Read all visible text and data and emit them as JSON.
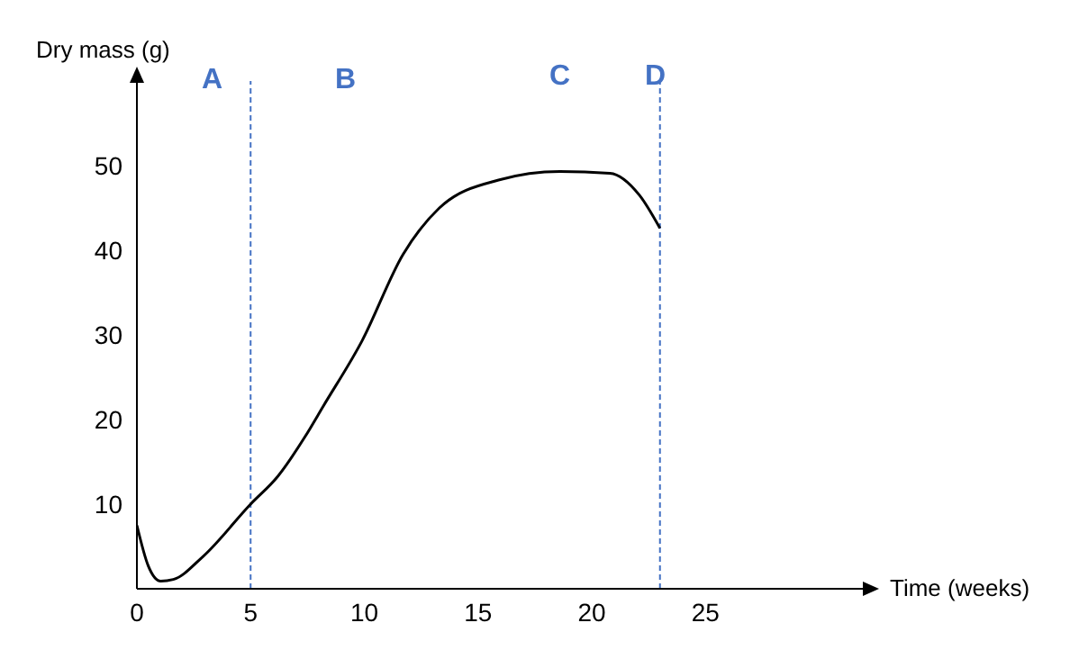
{
  "chart_data": {
    "type": "line",
    "xlabel": "Time (weeks)",
    "ylabel": "Dry mass (g)",
    "x": [
      0,
      0.5,
      1.05,
      1.6,
      2.9,
      5,
      6.2,
      7.4,
      8.2,
      9.9,
      11.7,
      13.3,
      15.9,
      18.6,
      20.8,
      22.1,
      23
    ],
    "series": [
      {
        "color": "#000000",
        "values": [
          7.5,
          2.7,
          0.9,
          1.1,
          3.8,
          10,
          13.3,
          18,
          21.6,
          29.3,
          39.5,
          45,
          48.3,
          49.3,
          49.1,
          46.5,
          42.6
        ]
      }
    ],
    "xlim": [
      0,
      32
    ],
    "xticks": [
      0,
      5,
      10,
      15,
      20,
      25
    ],
    "ylim": [
      0,
      60
    ],
    "yticks": [
      10,
      20,
      30,
      40,
      50
    ],
    "ref_lines": [
      {
        "axis": "x",
        "value": 5,
        "color": "#4472c4",
        "line_style": "dashed"
      },
      {
        "axis": "x",
        "value": 23,
        "color": "#4472c4",
        "line_style": "dashed"
      }
    ],
    "annotations": [
      "A",
      "B",
      "C",
      "D"
    ],
    "grid": false,
    "marker": "none",
    "line_style": "solid"
  }
}
